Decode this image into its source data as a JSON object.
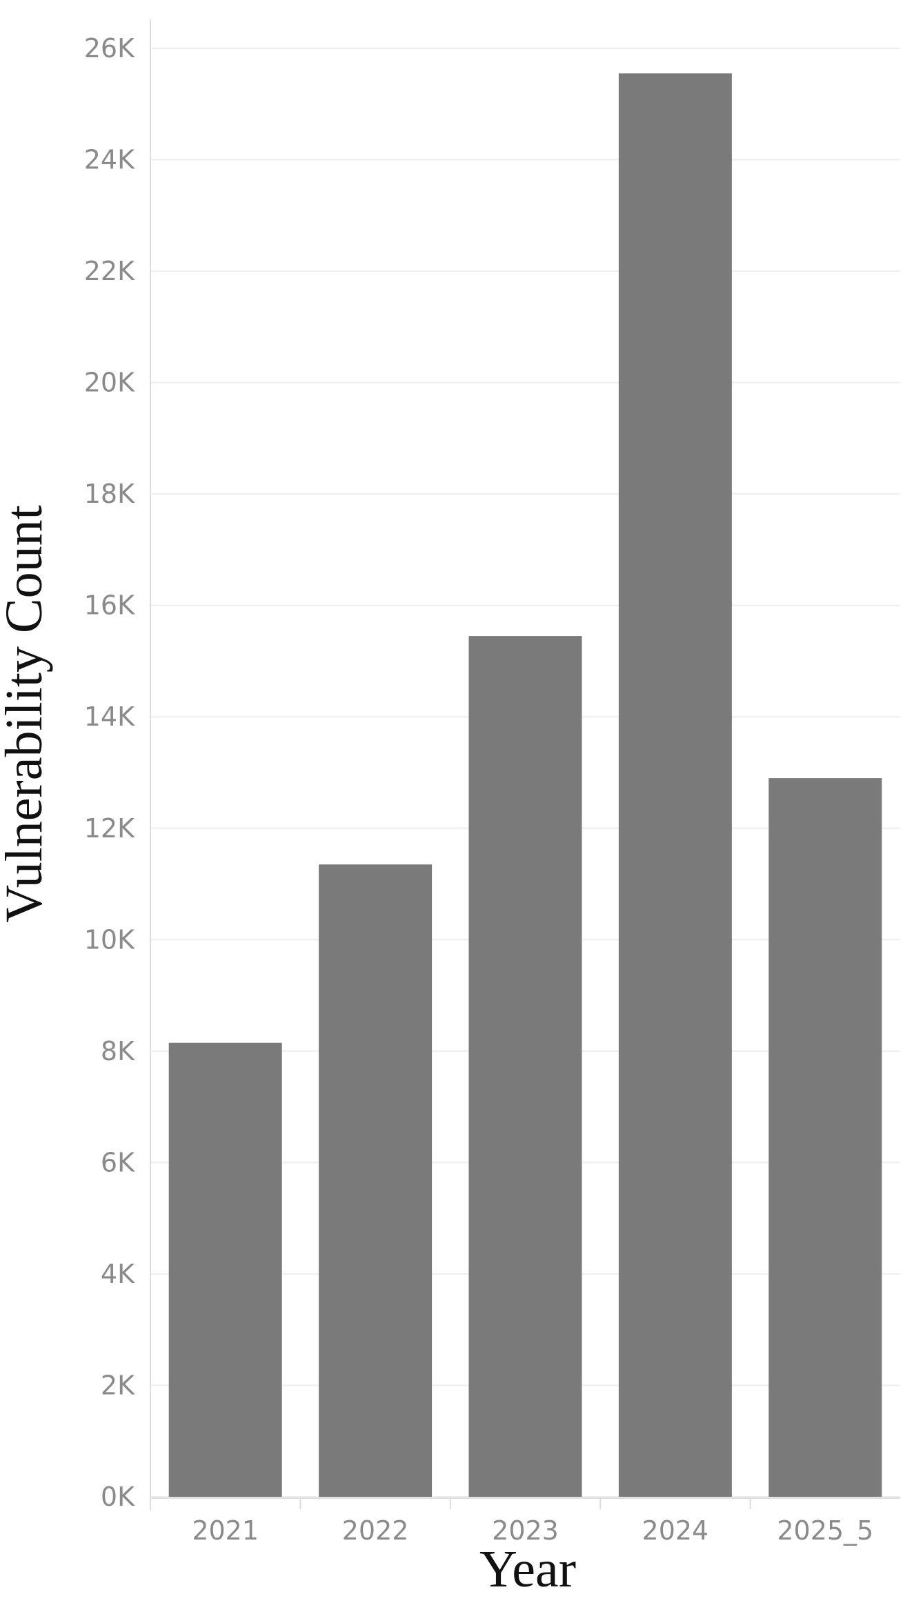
{
  "chart_data": {
    "type": "bar",
    "categories": [
      "2021",
      "2022",
      "2023",
      "2024",
      "2025_5"
    ],
    "values": [
      8150,
      11350,
      15450,
      25550,
      12900
    ],
    "xlabel": "Year",
    "ylabel": "Vulnerability Count",
    "ylim": [
      0,
      26000
    ],
    "yticks": [
      0,
      2000,
      4000,
      6000,
      8000,
      10000,
      12000,
      14000,
      16000,
      18000,
      20000,
      22000,
      24000,
      26000
    ],
    "ytick_labels": [
      "0K",
      "2K",
      "4K",
      "6K",
      "8K",
      "10K",
      "12K",
      "14K",
      "16K",
      "18K",
      "20K",
      "22K",
      "24K",
      "26K"
    ],
    "grid": true,
    "legend": "none",
    "colors": {
      "bar": "#7a7a7a",
      "grid": "#eeeeee",
      "axis": "#dddddd"
    }
  }
}
